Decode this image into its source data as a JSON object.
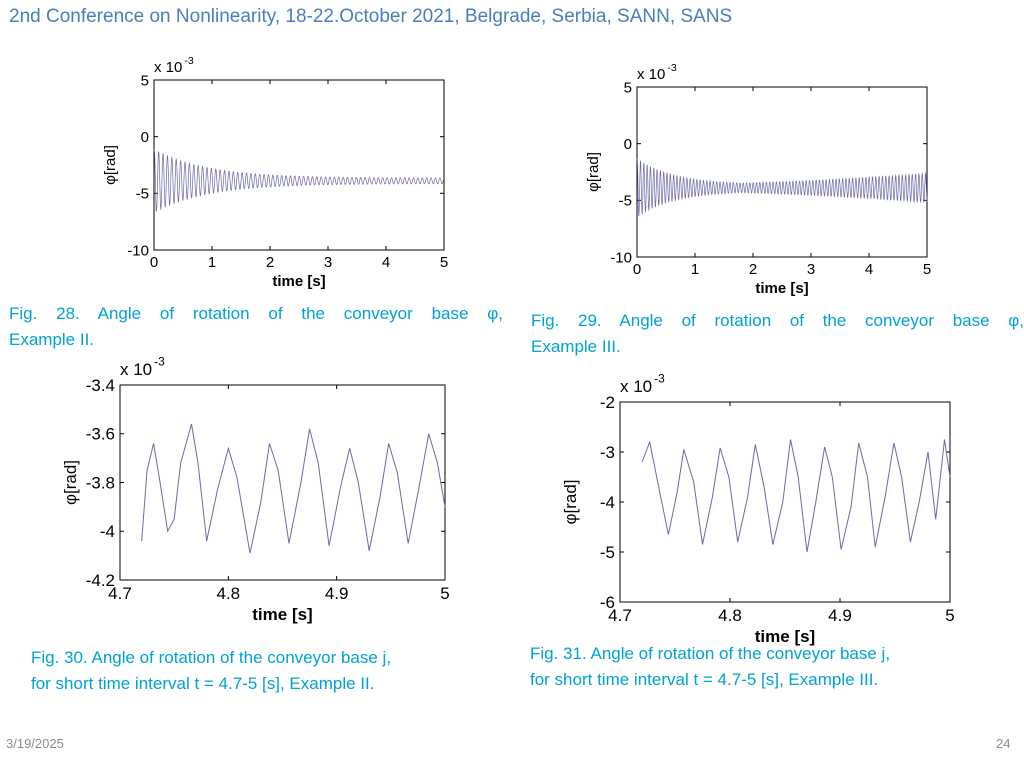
{
  "header": {
    "title": "2nd Conference on Nonlinearity, 18-22.October 2021, Belgrade, Serbia, SANN, SANS"
  },
  "captions": {
    "fig28": [
      "Fig. 28. Angle of rotation of the conveyor base φ,",
      "Example II."
    ],
    "fig29": [
      "Fig. 29. Angle of rotation of the conveyor base φ,",
      "Example III."
    ],
    "fig30": [
      "Fig. 30. Angle of rotation of the conveyor base j,",
      "for short time interval t = 4.7-5 [s], Example II."
    ],
    "fig31": [
      "Fig. 31. Angle of rotation of the conveyor base j,",
      "for short time interval t = 4.7-5 [s], Example III."
    ]
  },
  "footer": {
    "date": "3/19/2025",
    "page": "24"
  },
  "colors": {
    "header": "#4a7ebb",
    "caption": "#00a2d4",
    "signal": "#6a6aaa"
  },
  "chart_data": [
    {
      "type": "line",
      "id": "fig28",
      "xlabel": "time [s]",
      "ylabel": "φ[rad]",
      "multiplier_label": "x 10",
      "multiplier_exp": "-3",
      "xlim": [
        0,
        5
      ],
      "ylim": [
        -10,
        5
      ],
      "xticks": [
        0,
        1,
        2,
        3,
        4,
        5
      ],
      "yticks": [
        -10,
        -5,
        0,
        5
      ],
      "signal": {
        "t_start": 0.0,
        "t_end": 5.0,
        "mean": -3.9,
        "freq_hz": 13.2,
        "amp_start": 2.8,
        "amp_end": 0.25,
        "decay": 1.1
      }
    },
    {
      "type": "line",
      "id": "fig29",
      "xlabel": "time [s]",
      "ylabel": "φ[rad]",
      "multiplier_label": "x 10",
      "multiplier_exp": "-3",
      "xlim": [
        0,
        5
      ],
      "ylim": [
        -10,
        5
      ],
      "xticks": [
        0,
        1,
        2,
        3,
        4,
        5
      ],
      "yticks": [
        -10,
        -5,
        0,
        5
      ],
      "signal": {
        "t_start": 0.0,
        "t_end": 5.0,
        "mean": -3.9,
        "freq_hz": 17.5,
        "amp_start": 2.6,
        "amp_min": 0.3,
        "amp_end": 1.3,
        "decay": 1.6
      }
    },
    {
      "type": "line",
      "id": "fig30",
      "xlabel": "time [s]",
      "ylabel": "φ[rad]",
      "multiplier_label": "x 10",
      "multiplier_exp": "-3",
      "xlim": [
        4.7,
        5.0
      ],
      "ylim": [
        -4.2,
        -3.4
      ],
      "xticks": [
        4.7,
        4.8,
        4.9,
        5
      ],
      "yticks": [
        -4.2,
        -4,
        -3.8,
        -3.6,
        -3.4
      ],
      "points": [
        [
          4.72,
          -4.04
        ],
        [
          4.725,
          -3.75
        ],
        [
          4.731,
          -3.64
        ],
        [
          4.737,
          -3.8
        ],
        [
          4.744,
          -4.0
        ],
        [
          4.75,
          -3.95
        ],
        [
          4.756,
          -3.72
        ],
        [
          4.766,
          -3.56
        ],
        [
          4.772,
          -3.72
        ],
        [
          4.78,
          -4.04
        ],
        [
          4.79,
          -3.83
        ],
        [
          4.8,
          -3.66
        ],
        [
          4.808,
          -3.78
        ],
        [
          4.82,
          -4.09
        ],
        [
          4.83,
          -3.88
        ],
        [
          4.838,
          -3.64
        ],
        [
          4.846,
          -3.75
        ],
        [
          4.856,
          -4.05
        ],
        [
          4.867,
          -3.8
        ],
        [
          4.875,
          -3.58
        ],
        [
          4.883,
          -3.72
        ],
        [
          4.893,
          -4.06
        ],
        [
          4.904,
          -3.81
        ],
        [
          4.912,
          -3.66
        ],
        [
          4.92,
          -3.8
        ],
        [
          4.93,
          -4.08
        ],
        [
          4.94,
          -3.86
        ],
        [
          4.948,
          -3.64
        ],
        [
          4.956,
          -3.76
        ],
        [
          4.966,
          -4.05
        ],
        [
          4.976,
          -3.82
        ],
        [
          4.985,
          -3.6
        ],
        [
          4.993,
          -3.72
        ],
        [
          5.0,
          -3.9
        ]
      ]
    },
    {
      "type": "line",
      "id": "fig31",
      "xlabel": "time [s]",
      "ylabel": "φ[rad]",
      "multiplier_label": "x 10",
      "multiplier_exp": "-3",
      "xlim": [
        4.7,
        5.0
      ],
      "ylim": [
        -6,
        -2
      ],
      "xticks": [
        4.7,
        4.8,
        4.9,
        5
      ],
      "yticks": [
        -6,
        -5,
        -4,
        -3,
        -2
      ],
      "points": [
        [
          4.72,
          -3.2
        ],
        [
          4.727,
          -2.8
        ],
        [
          4.737,
          -3.9
        ],
        [
          4.744,
          -4.65
        ],
        [
          4.752,
          -3.8
        ],
        [
          4.758,
          -2.95
        ],
        [
          4.767,
          -3.6
        ],
        [
          4.775,
          -4.85
        ],
        [
          4.784,
          -3.9
        ],
        [
          4.791,
          -2.92
        ],
        [
          4.799,
          -3.5
        ],
        [
          4.807,
          -4.8
        ],
        [
          4.816,
          -3.9
        ],
        [
          4.823,
          -2.85
        ],
        [
          4.831,
          -3.7
        ],
        [
          4.839,
          -4.85
        ],
        [
          4.848,
          -4.0
        ],
        [
          4.855,
          -2.75
        ],
        [
          4.862,
          -3.5
        ],
        [
          4.87,
          -5.0
        ],
        [
          4.878,
          -4.0
        ],
        [
          4.886,
          -2.9
        ],
        [
          4.893,
          -3.5
        ],
        [
          4.901,
          -4.95
        ],
        [
          4.91,
          -4.1
        ],
        [
          4.917,
          -2.82
        ],
        [
          4.925,
          -3.5
        ],
        [
          4.932,
          -4.9
        ],
        [
          4.941,
          -3.9
        ],
        [
          4.949,
          -2.82
        ],
        [
          4.956,
          -3.5
        ],
        [
          4.964,
          -4.8
        ],
        [
          4.972,
          -4.0
        ],
        [
          4.98,
          -3.0
        ],
        [
          4.987,
          -4.35
        ],
        [
          4.995,
          -2.75
        ],
        [
          5.0,
          -3.5
        ]
      ]
    }
  ]
}
